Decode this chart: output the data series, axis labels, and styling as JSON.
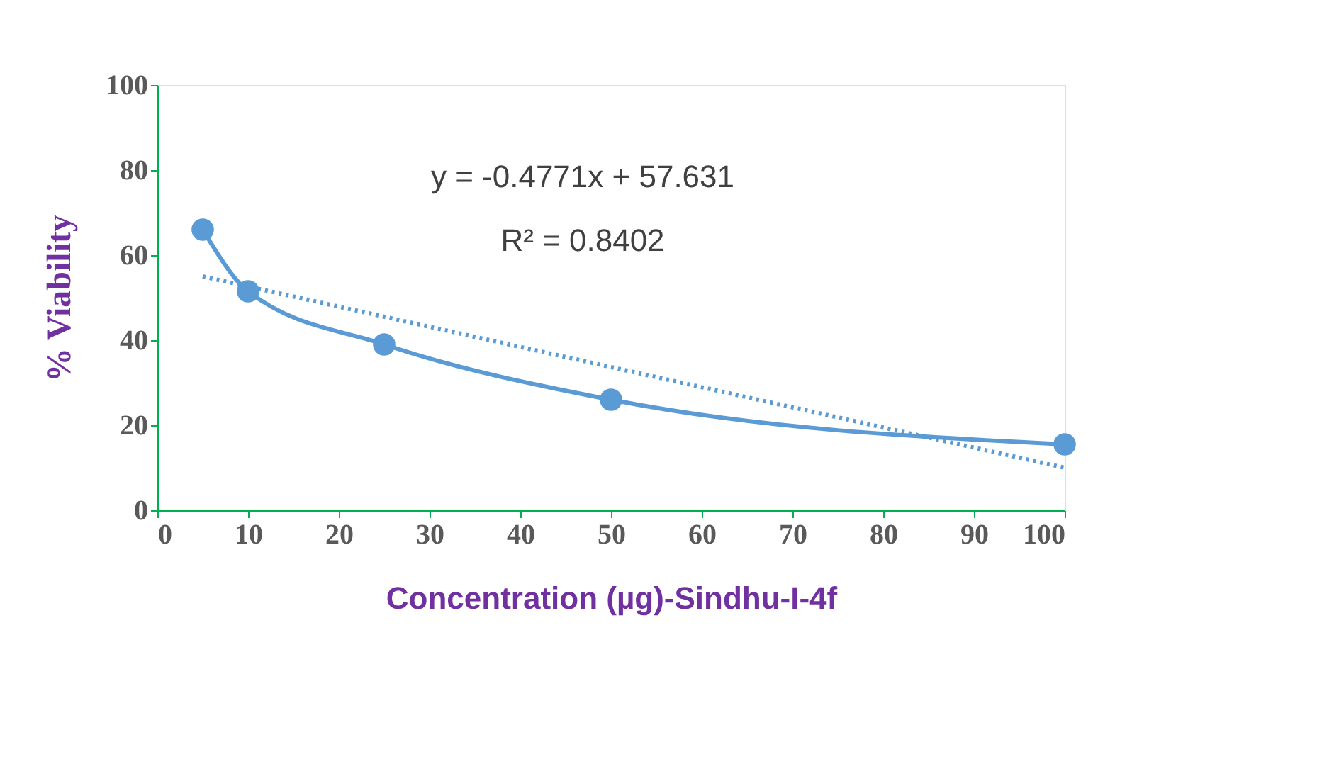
{
  "chart_data": {
    "type": "line",
    "xlabel": "Concentration (µg)-Sindhu-I-4f",
    "ylabel": "% Viability",
    "xlim": [
      0,
      100
    ],
    "xticks": [
      0,
      10,
      20,
      30,
      40,
      50,
      60,
      70,
      80,
      90,
      100
    ],
    "ylim": [
      0,
      100
    ],
    "yticks": [
      0,
      20,
      40,
      60,
      80,
      100
    ],
    "grid": false,
    "series": [
      {
        "color": "#5b9bd5",
        "marker": "circle",
        "line_style": "solid",
        "x": [
          5,
          10,
          25,
          50,
          100
        ],
        "values": [
          66,
          51.5,
          39,
          26,
          15.5
        ]
      },
      {
        "type": "line",
        "color": "#5b9bd5",
        "marker": "none",
        "line_style": "dotted",
        "x": [
          5,
          100
        ],
        "values": [
          55,
          10
        ]
      }
    ],
    "annotations": [
      "y = -0.4771x + 57.631",
      "R² = 0.8402"
    ]
  }
}
